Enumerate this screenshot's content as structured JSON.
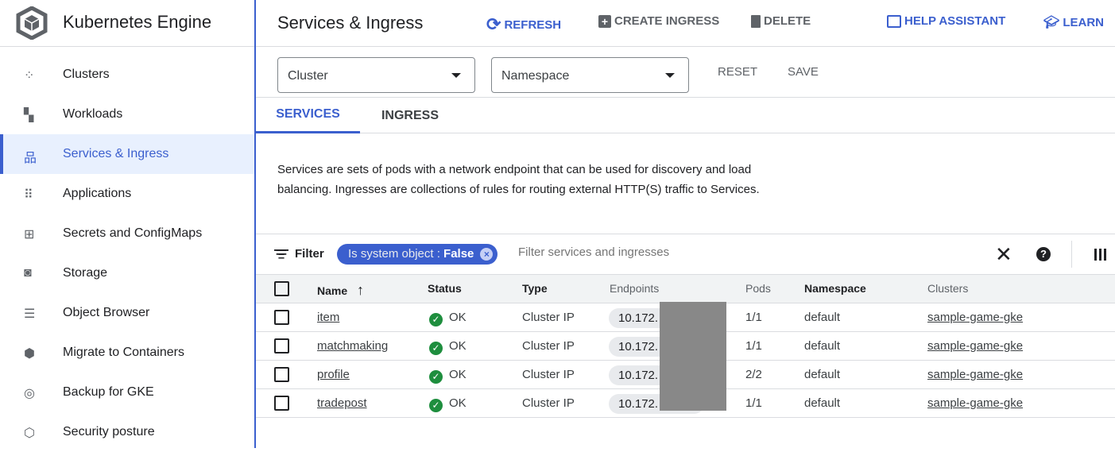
{
  "sidebar": {
    "title": "Kubernetes Engine",
    "items": [
      {
        "label": "Clusters",
        "icon": "clusters-icon"
      },
      {
        "label": "Workloads",
        "icon": "workloads-icon"
      },
      {
        "label": "Services & Ingress",
        "icon": "services-icon",
        "active": true
      },
      {
        "label": "Applications",
        "icon": "applications-icon"
      },
      {
        "label": "Secrets and ConfigMaps",
        "icon": "secrets-icon"
      },
      {
        "label": "Storage",
        "icon": "storage-icon"
      },
      {
        "label": "Object Browser",
        "icon": "object-browser-icon"
      },
      {
        "label": "Migrate to Containers",
        "icon": "migrate-icon"
      },
      {
        "label": "Backup for GKE",
        "icon": "backup-icon"
      },
      {
        "label": "Security posture",
        "icon": "security-icon"
      }
    ]
  },
  "header": {
    "title": "Services & Ingress",
    "refresh": "REFRESH",
    "create": "CREATE INGRESS",
    "delete": "DELETE",
    "help": "HELP ASSISTANT",
    "learn": "LEARN"
  },
  "filters": {
    "cluster": "Cluster",
    "namespace": "Namespace",
    "reset": "RESET",
    "save": "SAVE"
  },
  "tabs": [
    "SERVICES",
    "INGRESS"
  ],
  "description": "Services are sets of pods with a network endpoint that can be used for discovery and load balancing. Ingresses are collections of rules for routing external HTTP(S) traffic to Services.",
  "filterbar": {
    "label": "Filter",
    "chip_key": "Is system object : ",
    "chip_value": "False",
    "placeholder": "Filter services and ingresses"
  },
  "table": {
    "columns": [
      "Name",
      "Status",
      "Type",
      "Endpoints",
      "Pods",
      "Namespace",
      "Clusters"
    ],
    "rows": [
      {
        "name": "item",
        "status": "OK",
        "type": "Cluster IP",
        "endpoint": "10.172.",
        "pods": "1/1",
        "namespace": "default",
        "cluster": "sample-game-gke"
      },
      {
        "name": "matchmaking",
        "status": "OK",
        "type": "Cluster IP",
        "endpoint": "10.172.",
        "pods": "1/1",
        "namespace": "default",
        "cluster": "sample-game-gke"
      },
      {
        "name": "profile",
        "status": "OK",
        "type": "Cluster IP",
        "endpoint": "10.172.",
        "pods": "2/2",
        "namespace": "default",
        "cluster": "sample-game-gke"
      },
      {
        "name": "tradepost",
        "status": "OK",
        "type": "Cluster IP",
        "endpoint": "10.172.",
        "pods": "1/1",
        "namespace": "default",
        "cluster": "sample-game-gke"
      }
    ]
  },
  "colors": {
    "accent": "#3b5fce",
    "ok": "#1e8e3e"
  }
}
